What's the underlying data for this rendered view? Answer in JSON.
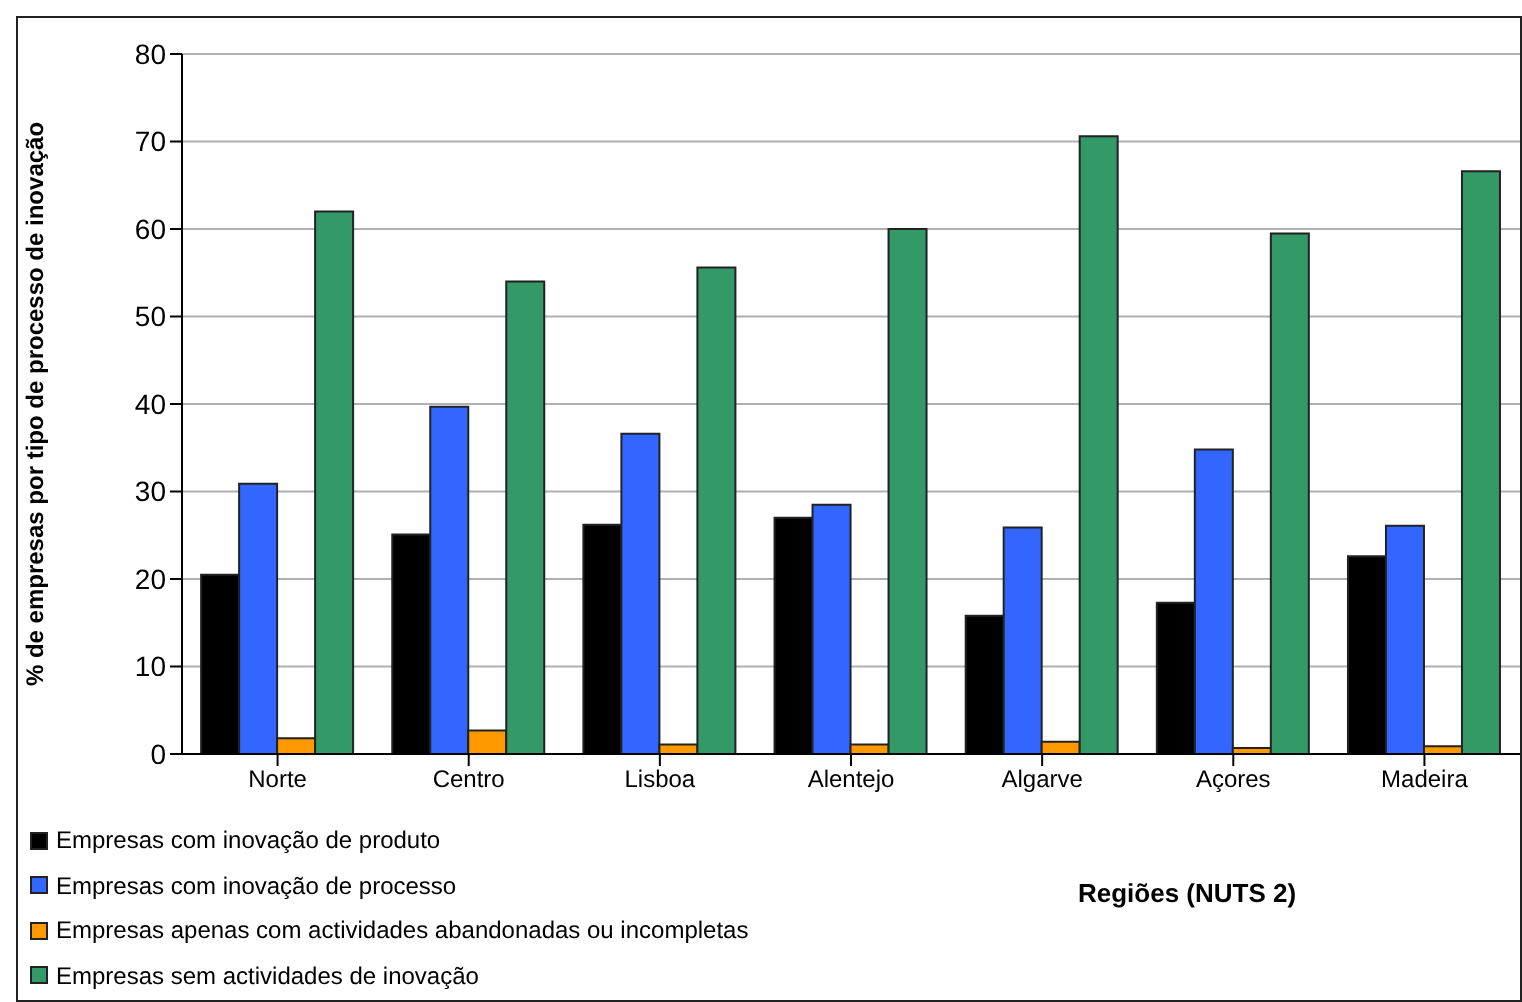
{
  "chart_data": {
    "type": "bar",
    "xlabel": "Regiões (NUTS 2)",
    "ylabel": "% de empresas por tipo de processo de inovação",
    "categories": [
      "Norte",
      "Centro",
      "Lisboa",
      "Alentejo",
      "Algarve",
      "Açores",
      "Madeira"
    ],
    "series": [
      {
        "name": "Empresas com inovação de produto",
        "color": "#000000",
        "values": [
          20.5,
          25.1,
          26.2,
          27.0,
          15.8,
          17.3,
          22.6
        ]
      },
      {
        "name": "Empresas com inovação de processo",
        "color": "#3366ff",
        "values": [
          30.9,
          39.7,
          36.6,
          28.5,
          25.9,
          34.8,
          26.1
        ]
      },
      {
        "name": "Empresas apenas com actividades abandonadas ou incompletas",
        "color": "#ff9900",
        "values": [
          1.8,
          2.7,
          1.1,
          1.1,
          1.4,
          0.7,
          0.9
        ]
      },
      {
        "name": "Empresas sem actividades de inovação",
        "color": "#339966",
        "values": [
          62.0,
          54.0,
          55.6,
          60.0,
          70.6,
          59.5,
          66.6
        ]
      }
    ],
    "ylim": [
      0,
      80
    ],
    "yticks": [
      0,
      10,
      20,
      30,
      40,
      50,
      60,
      70,
      80
    ],
    "grid": "y",
    "legend": "bottom left"
  }
}
